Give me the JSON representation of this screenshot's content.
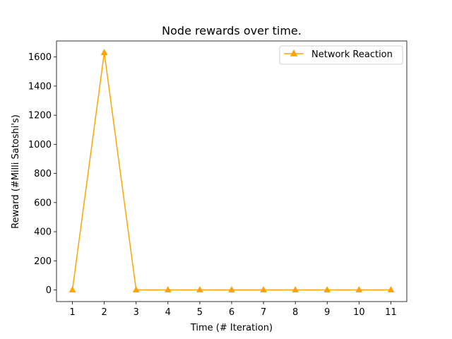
{
  "chart_data": {
    "type": "line",
    "title": "Node rewards over time.",
    "xlabel": "Time (# Iteration)",
    "ylabel": "Reward (#Milli Satoshi's)",
    "x": [
      1,
      2,
      3,
      4,
      5,
      6,
      7,
      8,
      9,
      10,
      11
    ],
    "xticks": [
      "1",
      "2",
      "3",
      "4",
      "5",
      "6",
      "7",
      "8",
      "9",
      "10",
      "11"
    ],
    "yticks": [
      "0",
      "200",
      "400",
      "600",
      "800",
      "1000",
      "1200",
      "1400",
      "1600"
    ],
    "xlim": [
      0.5,
      11.5
    ],
    "ylim": [
      -80,
      1710
    ],
    "grid": false,
    "legend_position": "top-right",
    "series": [
      {
        "name": "Network Reaction",
        "color": "#ffa500",
        "marker": "triangle-up",
        "values": [
          0,
          1630,
          0,
          0,
          0,
          0,
          0,
          0,
          0,
          0,
          0
        ]
      }
    ]
  }
}
